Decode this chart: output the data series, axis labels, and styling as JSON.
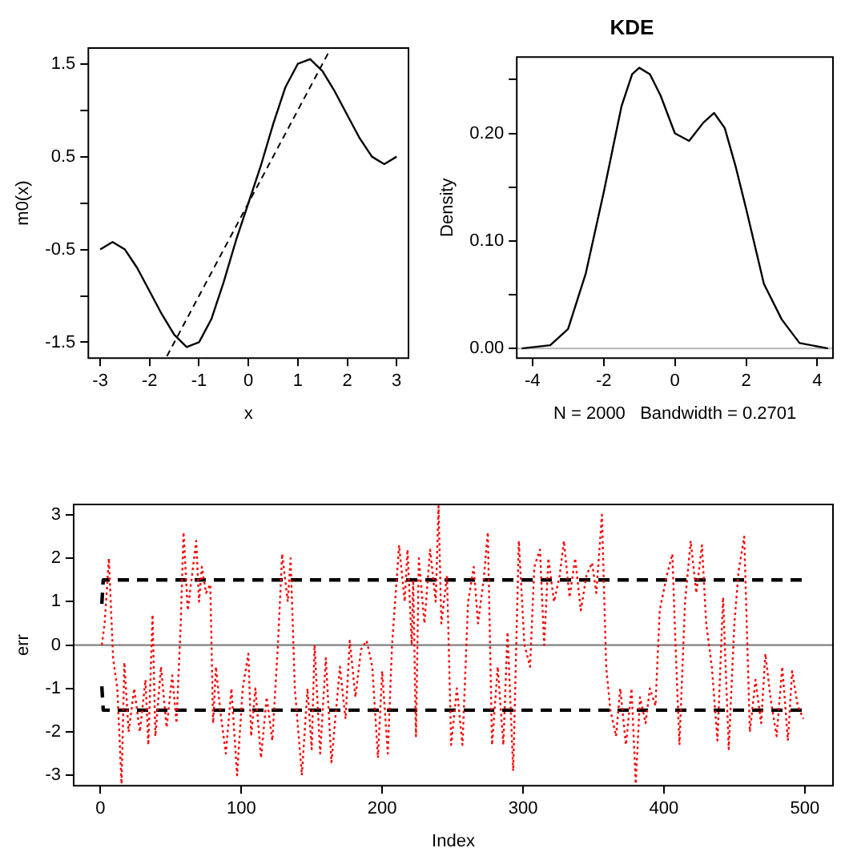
{
  "chart_data": [
    {
      "type": "line",
      "xlabel": "x",
      "ylabel": "m0(x)",
      "xlim": [
        -3.24,
        3.24
      ],
      "ylim": [
        -1.67,
        1.67
      ],
      "xticks": [
        -3,
        -2,
        -1,
        0,
        1,
        2,
        3
      ],
      "yticks": [
        -1.5,
        {
          "value": -1,
          "label": null
        },
        -0.5,
        {
          "value": 0,
          "label": null
        },
        0.5,
        {
          "value": 1,
          "label": null
        },
        1.5
      ],
      "marker": "none",
      "series": [
        {
          "color": "#000000",
          "line_style": "solid",
          "x": [
            -3,
            -2.75,
            -2.5,
            -2.25,
            -2,
            -1.75,
            -1.5,
            -1.25,
            -1,
            -0.75,
            -0.5,
            -0.25,
            0,
            0.25,
            0.5,
            0.75,
            1,
            1.25,
            1.5,
            1.75,
            2,
            2.25,
            2.5,
            2.75,
            3
          ],
          "values": [
            -0.5,
            -0.42,
            -0.5,
            -0.7,
            -0.95,
            -1.2,
            -1.42,
            -1.55,
            -1.5,
            -1.25,
            -0.85,
            -0.4,
            0,
            0.4,
            0.85,
            1.25,
            1.5,
            1.55,
            1.42,
            1.2,
            0.95,
            0.7,
            0.5,
            0.42,
            0.5
          ]
        },
        {
          "color": "#000000",
          "line_style": "dashed",
          "x": [
            -1.65,
            1.65
          ],
          "values": [
            -1.65,
            1.65
          ]
        }
      ]
    },
    {
      "type": "line",
      "title": "KDE",
      "xlabel": "N = 2000   Bandwidth = 0.2701",
      "ylabel": "Density",
      "xlim": [
        -4.44,
        4.44
      ],
      "ylim": [
        -0.009,
        0.271
      ],
      "xticks": [
        -4,
        -2,
        0,
        2,
        4
      ],
      "yticks": [
        {
          "value": 0,
          "label": "0.00"
        },
        {
          "value": 0.05,
          "label": null
        },
        {
          "value": 0.1,
          "label": "0.10"
        },
        {
          "value": 0.15,
          "label": null
        },
        {
          "value": 0.2,
          "label": "0.20"
        },
        {
          "value": 0.25,
          "label": null
        }
      ],
      "marker": "none",
      "ref_lines": [
        {
          "axis": "y",
          "value": 0,
          "color": "#bebebe",
          "line_style": "solid"
        }
      ],
      "series": [
        {
          "color": "#000000",
          "line_style": "solid",
          "x": [
            -4.3,
            -3.5,
            -3,
            -2.5,
            -2,
            -1.5,
            -1.2,
            -1,
            -0.7,
            -0.4,
            0,
            0.4,
            0.8,
            1.1,
            1.4,
            1.7,
            2,
            2.5,
            3,
            3.5,
            4.3
          ],
          "values": [
            0,
            0.003,
            0.018,
            0.07,
            0.145,
            0.225,
            0.255,
            0.261,
            0.255,
            0.235,
            0.2,
            0.193,
            0.21,
            0.219,
            0.205,
            0.17,
            0.13,
            0.06,
            0.027,
            0.005,
            0
          ]
        }
      ]
    },
    {
      "type": "line",
      "xlabel": "Index",
      "ylabel": "err",
      "xlim": [
        -19,
        520
      ],
      "ylim": [
        -3.24,
        3.24
      ],
      "xticks": [
        0,
        100,
        200,
        300,
        400,
        500
      ],
      "yticks": [
        -3,
        -2,
        -1,
        0,
        1,
        2,
        3
      ],
      "marker": "none",
      "ref_lines": [
        {
          "axis": "y",
          "value": 0,
          "color": "#808080",
          "line_style": "solid"
        }
      ],
      "series": [
        {
          "color": "#ff0000",
          "line_style": "dotted",
          "x": [
            1,
            3,
            6,
            9,
            12,
            15,
            17,
            20,
            24,
            28,
            32,
            34,
            37,
            39,
            43,
            47,
            51,
            54,
            57,
            59,
            62,
            68,
            70,
            72,
            75,
            78,
            80,
            82,
            85,
            89,
            93,
            97,
            101,
            105,
            107,
            110,
            114,
            118,
            122,
            126,
            129,
            133,
            135,
            138,
            143,
            147,
            150,
            152,
            156,
            160,
            164,
            170,
            174,
            177,
            181,
            185,
            189,
            193,
            197,
            200,
            204,
            207,
            212,
            216,
            218,
            221,
            222,
            224,
            226,
            230,
            234,
            238,
            240,
            242,
            246,
            249,
            253,
            257,
            261,
            265,
            268,
            272,
            275,
            278,
            282,
            286,
            289,
            293,
            297,
            301,
            305,
            308,
            312,
            315,
            318,
            322,
            326,
            329,
            333,
            337,
            341,
            345,
            349,
            352,
            356,
            359,
            362,
            366,
            369,
            373,
            377,
            380,
            383,
            387,
            390,
            394,
            397,
            402,
            406,
            408,
            411,
            415,
            419,
            423,
            427,
            430,
            434,
            438,
            442,
            446,
            450,
            453,
            457,
            461,
            465,
            469,
            472,
            476,
            480,
            484,
            488,
            491,
            495,
            499
          ],
          "values": [
            0,
            0.5,
            2,
            -0.3,
            -1,
            -3.2,
            -0.4,
            -2,
            -1,
            -2,
            -0.8,
            -2.3,
            0.7,
            -2.1,
            -0.5,
            -1.9,
            -0.7,
            -1.8,
            0.5,
            2.6,
            0.8,
            2.4,
            1,
            1.8,
            1.2,
            1.4,
            -1.8,
            -0.5,
            -1.5,
            -2.5,
            -1,
            -3,
            -1,
            -0.2,
            -2.1,
            -1,
            -2.6,
            -1.2,
            -2.2,
            0,
            2.1,
            1,
            2,
            -1,
            -3,
            -1,
            -2.4,
            0,
            -2.5,
            -0.3,
            -2.7,
            -0.5,
            -1.7,
            0.1,
            -1.2,
            -0.1,
            0.1,
            -0.5,
            -2.6,
            -0.6,
            -2.5,
            0,
            2.3,
            1,
            2.2,
            0,
            1.5,
            -2.1,
            2,
            0.5,
            2.2,
            1,
            3.2,
            0.5,
            1.6,
            -2.3,
            -1,
            -2.3,
            1,
            1.8,
            0.5,
            1.5,
            2.6,
            -2.3,
            -0.5,
            -2.3,
            0.3,
            -2.9,
            2.4,
            0,
            -0.5,
            1.8,
            2.2,
            0,
            2,
            1,
            1.6,
            2.4,
            1.1,
            2,
            0.8,
            1.6,
            1.9,
            1.2,
            3,
            -0.5,
            -1.5,
            -2.1,
            -1,
            -2.3,
            -1,
            -3.2,
            -1.2,
            -1.8,
            -1,
            -1.4,
            0.8,
            1.6,
            2.1,
            0.2,
            -2.3,
            1,
            2.4,
            1.2,
            2.3,
            0.5,
            -0.5,
            -2.2,
            1.1,
            -2.4,
            0.5,
            1.7,
            2.5,
            -2,
            -0.8,
            -1.8,
            -0.2,
            -1.3,
            -2.1,
            -0.5,
            -2.2,
            -0.6,
            -1.4,
            -1.7
          ]
        },
        {
          "color": "#000000",
          "line_style": "dashed",
          "x": [
            1,
            2,
            500
          ],
          "values": [
            0.95,
            1.5,
            1.5
          ]
        },
        {
          "color": "#000000",
          "line_style": "dashed",
          "x": [
            1,
            2,
            500
          ],
          "values": [
            -0.95,
            -1.5,
            -1.5
          ]
        }
      ]
    }
  ]
}
